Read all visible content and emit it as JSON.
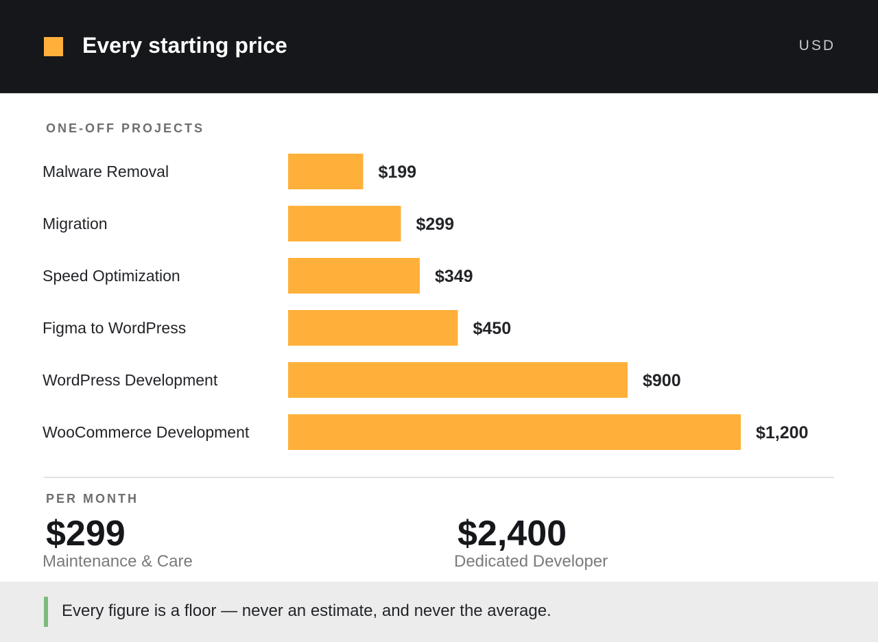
{
  "header": {
    "title": "Every starting price",
    "currency": "USD",
    "accent_color": "#ffb03b"
  },
  "chart_data": {
    "type": "bar",
    "orientation": "horizontal",
    "section_label": "ONE-OFF PROJECTS",
    "categories": [
      "Malware Removal",
      "Migration",
      "Speed Optimization",
      "Figma to WordPress",
      "WordPress Development",
      "WooCommerce Development"
    ],
    "values": [
      199,
      299,
      349,
      450,
      900,
      1200
    ],
    "value_labels": [
      "$199",
      "$299",
      "$349",
      "$450",
      "$900",
      "$1,200"
    ],
    "xlim": [
      0,
      1200
    ],
    "grid": false,
    "bar_color": "#ffb03b"
  },
  "monthly": {
    "section_label": "PER MONTH",
    "items": [
      {
        "value": "$299",
        "label": "Maintenance & Care"
      },
      {
        "value": "$2,400",
        "label": "Dedicated Developer"
      }
    ]
  },
  "footer": {
    "note": "Every figure is a floor — never an estimate, and never the average.",
    "accent_color": "#7cba7a"
  }
}
